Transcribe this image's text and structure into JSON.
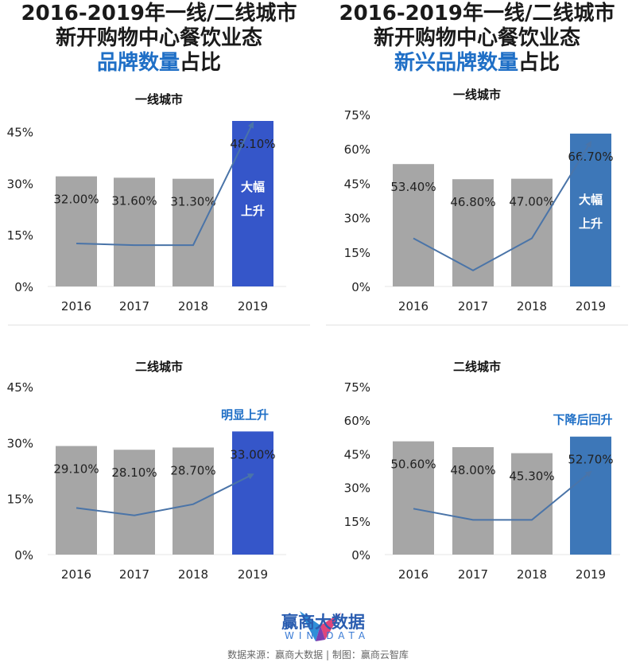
{
  "header": {
    "left": {
      "line1": "2016-2019年一线/二线城市",
      "line2": "新开购物中心餐饮业态",
      "line3_highlight": "品牌数量",
      "line3_rest": "占比"
    },
    "right": {
      "line1": "2016-2019年一线/二线城市",
      "line2": "新开购物中心餐饮业态",
      "line3_highlight": "新兴品牌数量",
      "line3_rest": "占比"
    }
  },
  "colors": {
    "gray_bar": "#a6a6a6",
    "blue_bar_left": "#3556c9",
    "blue_bar_right": "#3d77b8",
    "trend_line": "#4a74a8",
    "highlight_text": "#1f6fc6"
  },
  "chart_data": [
    {
      "type": "bar",
      "title": "一线城市",
      "categories": [
        "2016",
        "2017",
        "2018",
        "2019"
      ],
      "values": [
        32.0,
        31.6,
        31.3,
        48.1
      ],
      "value_labels": [
        "32.00%",
        "31.60%",
        "31.30%",
        "48.10%"
      ],
      "trend_line_values": [
        12.5,
        12.0,
        12.0,
        47.5
      ],
      "highlight_bar_index": 3,
      "bar_color": "#a6a6a6",
      "highlight_color": "#3556c9",
      "ylim": [
        0,
        48.1
      ],
      "yticks": [
        0,
        15,
        30,
        45
      ],
      "ytick_labels": [
        "0%",
        "15%",
        "30%",
        "45%"
      ],
      "annotation": "大幅上升",
      "annotation_position": "inside-bar"
    },
    {
      "type": "bar",
      "title": "一线城市",
      "categories": [
        "2016",
        "2017",
        "2018",
        "2019"
      ],
      "values": [
        53.4,
        46.8,
        47.0,
        66.7
      ],
      "value_labels": [
        "53.40%",
        "46.80%",
        "47.00%",
        "66.70%"
      ],
      "trend_line_values": [
        21.0,
        7.0,
        21.0,
        63.0
      ],
      "highlight_bar_index": 3,
      "bar_color": "#a6a6a6",
      "highlight_color": "#3d77b8",
      "ylim": [
        0,
        75
      ],
      "yticks": [
        0,
        15,
        30,
        45,
        60,
        75
      ],
      "ytick_labels": [
        "0%",
        "15%",
        "30%",
        "45%",
        "60%",
        "75%"
      ],
      "annotation": "大幅上升",
      "annotation_position": "inside-bar"
    },
    {
      "type": "bar",
      "title": "二线城市",
      "categories": [
        "2016",
        "2017",
        "2018",
        "2019"
      ],
      "values": [
        29.1,
        28.1,
        28.7,
        33.0
      ],
      "value_labels": [
        "29.10%",
        "28.10%",
        "28.70%",
        "33.00%"
      ],
      "trend_line_values": [
        12.5,
        10.5,
        13.5,
        21.5
      ],
      "highlight_bar_index": 3,
      "bar_color": "#a6a6a6",
      "highlight_color": "#3556c9",
      "ylim": [
        0,
        45
      ],
      "yticks": [
        0,
        15,
        30,
        45
      ],
      "ytick_labels": [
        "0%",
        "15%",
        "30%",
        "45%"
      ],
      "annotation": "明显上升",
      "annotation_position": "above-bar"
    },
    {
      "type": "bar",
      "title": "二线城市",
      "categories": [
        "2016",
        "2017",
        "2018",
        "2019"
      ],
      "values": [
        50.6,
        48.0,
        45.3,
        52.7
      ],
      "value_labels": [
        "50.60%",
        "48.00%",
        "45.30%",
        "52.70%"
      ],
      "trend_line_values": [
        20.5,
        15.5,
        15.5,
        37.0
      ],
      "highlight_bar_index": 3,
      "bar_color": "#a6a6a6",
      "highlight_color": "#3d77b8",
      "ylim": [
        0,
        75
      ],
      "yticks": [
        0,
        15,
        30,
        45,
        60,
        75
      ],
      "ytick_labels": [
        "0%",
        "15%",
        "30%",
        "45%",
        "60%",
        "75%"
      ],
      "annotation": "下降后回升",
      "annotation_position": "above-bar"
    }
  ],
  "footer": {
    "brand_name": "赢商大数据",
    "brand_sub": "WIN DATA",
    "source": "数据来源：赢商大数据 | 制图：赢商云智库"
  }
}
